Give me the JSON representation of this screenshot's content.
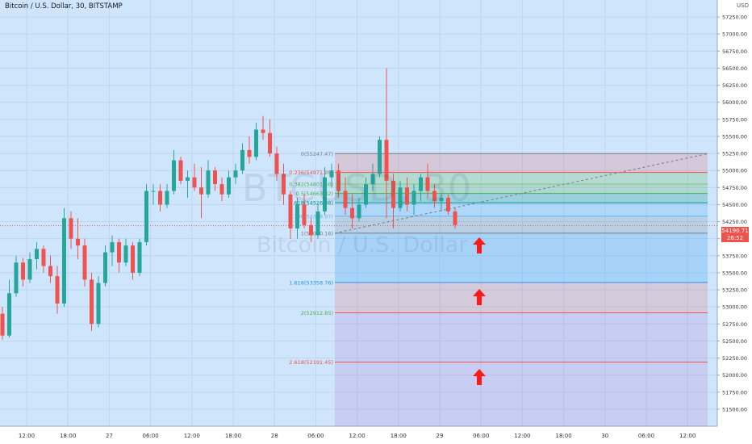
{
  "header": {
    "title": "Bitcoin / U.S. Dollar, 30, BITSTAMP",
    "currency": "USD"
  },
  "watermark": {
    "ticker": "BTCUSD, 30",
    "name": "Bitcoin / U.S. Dollar"
  },
  "last_price": {
    "value": "54190.71",
    "countdown": "26:52"
  },
  "colors": {
    "background": "#cfe5fb",
    "up": "#26a69a",
    "down": "#ef5350",
    "arrow": "#ff1a1a"
  },
  "icons": {
    "arrow": "up-arrow-icon"
  },
  "chart_data": {
    "type": "candlestick",
    "ylim": [
      51250,
      57500
    ],
    "y_ticks": [
      51500,
      51750,
      52000,
      52250,
      52500,
      52750,
      53000,
      53250,
      53500,
      53750,
      54000,
      54250,
      54500,
      54750,
      55000,
      55250,
      55500,
      55750,
      56000,
      56250,
      56500,
      56750,
      57000,
      57250
    ],
    "y_tick_labels": [
      "51500.00",
      "51750.00",
      "52000.00",
      "52250.00",
      "52500.00",
      "52750.00",
      "53000.00",
      "53250.00",
      "53500.00",
      "53750.00",
      "54000.00",
      "54250.00",
      "54500.00",
      "54750.00",
      "55000.00",
      "55250.00",
      "55500.00",
      "55750.00",
      "56000.00",
      "56250.00",
      "56500.00",
      "56750.00",
      "57000.00",
      "57250.00"
    ],
    "x_ticks": [
      "12:00",
      "18:00",
      "27",
      "06:00",
      "12:00",
      "18:00",
      "28",
      "06:00",
      "12:00",
      "18:00",
      "29",
      "06:00",
      "12:00",
      "18:00",
      "30",
      "06:00",
      "12:00"
    ],
    "fibonacci": {
      "levels": [
        {
          "label": "0(55247.47)",
          "value": 55247.47
        },
        {
          "label": "0.236(54971.99)",
          "value": 54971.99
        },
        {
          "label": "0.382(54801.56)",
          "value": 54801.56
        },
        {
          "label": "0.5(54663.82)",
          "value": 54663.82
        },
        {
          "label": "0.618(54526.08)",
          "value": 54526.08
        },
        {
          "label": "0.786(54329.97)",
          "value": 54329.97
        },
        {
          "label": "1(54080.16)",
          "value": 54080.16
        },
        {
          "label": "1.618(53358.76)",
          "value": 53358.76
        },
        {
          "label": "2(52912.85)",
          "value": 52912.85
        },
        {
          "label": "2.618(52191.45)",
          "value": 52191.45
        }
      ],
      "trend_line": {
        "from": 54080,
        "to": 55247
      }
    },
    "candles": [
      {
        "o": 52900,
        "h": 53000,
        "l": 52520,
        "c": 52580
      },
      {
        "o": 52580,
        "h": 53400,
        "l": 52550,
        "c": 53200
      },
      {
        "o": 53200,
        "h": 53750,
        "l": 53150,
        "c": 53650
      },
      {
        "o": 53650,
        "h": 53720,
        "l": 53300,
        "c": 53400
      },
      {
        "o": 53400,
        "h": 53800,
        "l": 53350,
        "c": 53700
      },
      {
        "o": 53700,
        "h": 53950,
        "l": 53550,
        "c": 53850
      },
      {
        "o": 53850,
        "h": 53900,
        "l": 53500,
        "c": 53600
      },
      {
        "o": 53600,
        "h": 53750,
        "l": 53350,
        "c": 53450
      },
      {
        "o": 53450,
        "h": 53600,
        "l": 52900,
        "c": 53050
      },
      {
        "o": 53050,
        "h": 54450,
        "l": 53000,
        "c": 54300
      },
      {
        "o": 54300,
        "h": 54400,
        "l": 53850,
        "c": 54000
      },
      {
        "o": 54000,
        "h": 54300,
        "l": 53700,
        "c": 53900
      },
      {
        "o": 53900,
        "h": 54000,
        "l": 53300,
        "c": 53400
      },
      {
        "o": 53400,
        "h": 53500,
        "l": 52650,
        "c": 52750
      },
      {
        "o": 52750,
        "h": 53450,
        "l": 52700,
        "c": 53350
      },
      {
        "o": 53350,
        "h": 53900,
        "l": 53300,
        "c": 53800
      },
      {
        "o": 53800,
        "h": 54050,
        "l": 53600,
        "c": 53950
      },
      {
        "o": 53950,
        "h": 54000,
        "l": 53500,
        "c": 53650
      },
      {
        "o": 53650,
        "h": 54000,
        "l": 53600,
        "c": 53900
      },
      {
        "o": 53900,
        "h": 53950,
        "l": 53400,
        "c": 53500
      },
      {
        "o": 53500,
        "h": 54000,
        "l": 53450,
        "c": 53950
      },
      {
        "o": 53950,
        "h": 54800,
        "l": 53900,
        "c": 54700
      },
      {
        "o": 54700,
        "h": 54800,
        "l": 54500,
        "c": 54700
      },
      {
        "o": 54700,
        "h": 54800,
        "l": 54400,
        "c": 54500
      },
      {
        "o": 54500,
        "h": 54800,
        "l": 54450,
        "c": 54700
      },
      {
        "o": 54700,
        "h": 55300,
        "l": 54650,
        "c": 55150
      },
      {
        "o": 55150,
        "h": 55200,
        "l": 54800,
        "c": 54850
      },
      {
        "o": 54850,
        "h": 55000,
        "l": 54600,
        "c": 54900
      },
      {
        "o": 54900,
        "h": 55100,
        "l": 54700,
        "c": 54750
      },
      {
        "o": 54750,
        "h": 55050,
        "l": 54300,
        "c": 54650
      },
      {
        "o": 54650,
        "h": 55150,
        "l": 54600,
        "c": 55000
      },
      {
        "o": 55000,
        "h": 55050,
        "l": 54700,
        "c": 54800
      },
      {
        "o": 54800,
        "h": 54900,
        "l": 54550,
        "c": 54650
      },
      {
        "o": 54650,
        "h": 55000,
        "l": 54600,
        "c": 54900
      },
      {
        "o": 54900,
        "h": 55100,
        "l": 54800,
        "c": 55000
      },
      {
        "o": 55000,
        "h": 55400,
        "l": 54950,
        "c": 55300
      },
      {
        "o": 55300,
        "h": 55500,
        "l": 55100,
        "c": 55200
      },
      {
        "o": 55200,
        "h": 55700,
        "l": 55150,
        "c": 55600
      },
      {
        "o": 55600,
        "h": 55800,
        "l": 55450,
        "c": 55550
      },
      {
        "o": 55550,
        "h": 55750,
        "l": 55200,
        "c": 55250
      },
      {
        "o": 55250,
        "h": 55350,
        "l": 54850,
        "c": 54950
      },
      {
        "o": 54950,
        "h": 55100,
        "l": 54500,
        "c": 54650
      },
      {
        "o": 54650,
        "h": 54700,
        "l": 54000,
        "c": 54150
      },
      {
        "o": 54150,
        "h": 54600,
        "l": 54000,
        "c": 54500
      },
      {
        "o": 54500,
        "h": 54650,
        "l": 54150,
        "c": 54200
      },
      {
        "o": 54200,
        "h": 54300,
        "l": 53950,
        "c": 54050
      },
      {
        "o": 54050,
        "h": 54500,
        "l": 54000,
        "c": 54400
      },
      {
        "o": 54400,
        "h": 55050,
        "l": 54350,
        "c": 54900
      },
      {
        "o": 54900,
        "h": 55100,
        "l": 54750,
        "c": 55000
      },
      {
        "o": 55000,
        "h": 55100,
        "l": 54600,
        "c": 54700
      },
      {
        "o": 54700,
        "h": 54900,
        "l": 54350,
        "c": 54450
      },
      {
        "o": 54450,
        "h": 54650,
        "l": 54150,
        "c": 54300
      },
      {
        "o": 54300,
        "h": 54600,
        "l": 54250,
        "c": 54500
      },
      {
        "o": 54500,
        "h": 54900,
        "l": 54450,
        "c": 54800
      },
      {
        "o": 54800,
        "h": 55100,
        "l": 54700,
        "c": 54950
      },
      {
        "o": 54950,
        "h": 55500,
        "l": 54900,
        "c": 55450
      },
      {
        "o": 55450,
        "h": 56500,
        "l": 54300,
        "c": 54850
      },
      {
        "o": 54850,
        "h": 54950,
        "l": 54150,
        "c": 54450
      },
      {
        "o": 54450,
        "h": 54850,
        "l": 54400,
        "c": 54750
      },
      {
        "o": 54750,
        "h": 54900,
        "l": 54400,
        "c": 54500
      },
      {
        "o": 54500,
        "h": 54800,
        "l": 54350,
        "c": 54700
      },
      {
        "o": 54700,
        "h": 54950,
        "l": 54550,
        "c": 54900
      },
      {
        "o": 54900,
        "h": 55100,
        "l": 54600,
        "c": 54700
      },
      {
        "o": 54700,
        "h": 54800,
        "l": 54450,
        "c": 54550
      },
      {
        "o": 54550,
        "h": 54650,
        "l": 54400,
        "c": 54600
      },
      {
        "o": 54600,
        "h": 54650,
        "l": 54350,
        "c": 54400
      },
      {
        "o": 54400,
        "h": 54450,
        "l": 54150,
        "c": 54200
      }
    ]
  }
}
